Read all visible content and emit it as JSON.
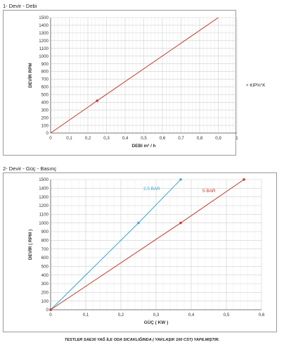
{
  "sections": [
    {
      "title": "1- Devir - Debi"
    },
    {
      "title": "2- Devir - Güç - Basınç"
    }
  ],
  "side_note": "+ KIP%°K",
  "footer": "TESTLER SAE30 YAĞ İLE ODA SICAKLIĞINDA ( YAKLAŞIK 100 CST) YAPILMIŞTIR.",
  "colors": {
    "red": "#c0392b",
    "blue": "#3aa5d8",
    "grid": "#cfcfcf",
    "axis": "#555555"
  },
  "chart_data": [
    {
      "type": "line",
      "title": "",
      "xlabel": "DEBI m³ / h",
      "ylabel": "DEVİR RPM",
      "xlim": [
        0,
        1
      ],
      "ylim": [
        0,
        1500
      ],
      "xticks": [
        0,
        0.1,
        0.2,
        0.3,
        0.4,
        0.5,
        0.6,
        0.7,
        0.8,
        0.9,
        1
      ],
      "xtick_labels": [
        "0",
        "0,1",
        "0,2",
        "0,3",
        "0,4",
        "0,5",
        "0,6",
        "0,7",
        "0,8",
        "0,9",
        "1"
      ],
      "yticks": [
        0,
        100,
        200,
        300,
        400,
        500,
        600,
        700,
        800,
        900,
        1000,
        1100,
        1200,
        1300,
        1400,
        1500
      ],
      "ytick_labels": [
        "0",
        "100",
        "200",
        "300",
        "400",
        "500",
        "600",
        "700",
        "800",
        "900",
        "1000",
        "1100",
        "1200",
        "1300",
        "1400",
        "1500"
      ],
      "grid": true,
      "series": [
        {
          "name": "",
          "color": "#c0392b",
          "x": [
            0,
            0.25,
            0.9
          ],
          "y": [
            0,
            420,
            1500
          ],
          "markers": [
            1
          ]
        }
      ]
    },
    {
      "type": "line",
      "title": "",
      "xlabel": "GÜÇ ( KW )",
      "ylabel": "DEVİR ( RPM )",
      "xlim": [
        0,
        0.6
      ],
      "ylim": [
        0,
        1500
      ],
      "xticks": [
        0,
        0.1,
        0.2,
        0.3,
        0.4,
        0.5,
        0.6
      ],
      "xtick_labels": [
        "0",
        "0,1",
        "0,2",
        "0,3",
        "0,4",
        "0,5",
        "0,6"
      ],
      "yticks": [
        0,
        100,
        200,
        300,
        400,
        500,
        600,
        700,
        800,
        900,
        1000,
        1100,
        1200,
        1300,
        1400,
        1500
      ],
      "ytick_labels": [
        "0",
        "100",
        "200",
        "300",
        "400",
        "500",
        "600",
        "700",
        "800",
        "900",
        "1000",
        "1100",
        "1200",
        "1300",
        "1400",
        "1500"
      ],
      "grid": true,
      "series": [
        {
          "name": "2,5 BAR",
          "color": "#3aa5d8",
          "x": [
            0,
            0.25,
            0.37
          ],
          "y": [
            0,
            1000,
            1500
          ],
          "markers": [
            0,
            1,
            2
          ]
        },
        {
          "name": "5 BAR",
          "color": "#c0392b",
          "x": [
            0,
            0.37,
            0.55
          ],
          "y": [
            0,
            1000,
            1500
          ],
          "markers": [
            0,
            1,
            2
          ]
        }
      ]
    }
  ]
}
